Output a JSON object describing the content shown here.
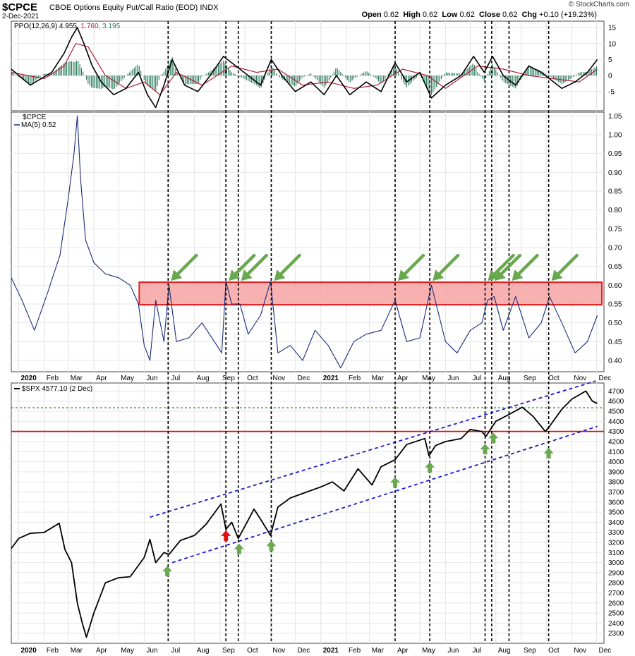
{
  "header": {
    "symbol": "$CPCE",
    "title": "CBOE Options Equity Put/Call Ratio (EOD)",
    "exchange": "INDX",
    "date": "2-Dec-2021",
    "open_label": "Open",
    "open": "0.62",
    "high_label": "High",
    "high": "0.62",
    "low_label": "Low",
    "low": "0.62",
    "close_label": "Close",
    "close": "0.62",
    "chg_label": "Chg",
    "chg": "+0.10 (+19.23%)",
    "brand": "© StockCharts.com"
  },
  "colors": {
    "ppo_line": "#000000",
    "signal_line": "#b0203a",
    "histogram": "#2e7d60",
    "cpce_line": "#1a2a7a",
    "zone_fill": "#f7a3a3",
    "zone_border": "#e02020",
    "arrow_green": "#6aa84f",
    "arrow_red": "#e01010",
    "channel": "#1a1ad0",
    "support_red": "#d01010",
    "level_green": "#3a9a3a"
  },
  "chart_data": [
    {
      "type": "line",
      "panel": "PPO",
      "legend": [
        {
          "name": "PPO(12,26,9)",
          "value": "4.955"
        },
        {
          "name": "",
          "value": "1.760"
        },
        {
          "name": "",
          "value": "3.195"
        }
      ],
      "y_ticks": [
        "15",
        "10",
        "5",
        "0",
        "-5"
      ],
      "ylim": [
        -11,
        17
      ],
      "series": [
        {
          "name": "PPO",
          "x": [
            "2019-12-23",
            "2020-01-15",
            "2020-02-10",
            "2020-02-25",
            "2020-03-05",
            "2020-03-12",
            "2020-03-20",
            "2020-03-30",
            "2020-04-10",
            "2020-04-25",
            "2020-05-10",
            "2020-05-25",
            "2020-06-05",
            "2020-06-15",
            "2020-06-25",
            "2020-07-05",
            "2020-07-20",
            "2020-08-05",
            "2020-08-20",
            "2020-09-05",
            "2020-09-15",
            "2020-09-25",
            "2020-10-05",
            "2020-10-20",
            "2020-11-02",
            "2020-11-15",
            "2020-12-01",
            "2020-12-20",
            "2021-01-05",
            "2021-01-20",
            "2021-02-05",
            "2021-02-25",
            "2021-03-15",
            "2021-04-01",
            "2021-04-15",
            "2021-05-01",
            "2021-05-15",
            "2021-06-01",
            "2021-06-20",
            "2021-07-05",
            "2021-07-18",
            "2021-07-28",
            "2021-08-10",
            "2021-08-25",
            "2021-09-10",
            "2021-09-25",
            "2021-10-05",
            "2021-10-20",
            "2021-11-05",
            "2021-11-20",
            "2021-12-02"
          ],
          "values": [
            2,
            -3,
            1,
            7,
            12,
            15,
            10,
            3,
            -2,
            -6,
            -4,
            1,
            -6,
            -10,
            -3,
            5,
            -3,
            -5,
            0,
            6,
            4,
            2,
            0,
            -3,
            5,
            0,
            -5,
            -2,
            -6,
            0,
            -6,
            -2,
            -5,
            4,
            -2,
            1,
            -7,
            -3,
            0,
            6,
            1,
            6,
            0,
            -3,
            3,
            1,
            -1,
            -4,
            -2,
            1,
            5
          ]
        },
        {
          "name": "Signal",
          "x": [
            "2019-12-23",
            "2020-02-01",
            "2020-02-25",
            "2020-03-10",
            "2020-03-25",
            "2020-04-15",
            "2020-05-10",
            "2020-06-01",
            "2020-06-20",
            "2020-07-10",
            "2020-08-10",
            "2020-09-15",
            "2020-10-15",
            "2020-11-10",
            "2020-12-10",
            "2021-01-10",
            "2021-02-10",
            "2021-03-10",
            "2021-04-10",
            "2021-05-10",
            "2021-06-01",
            "2021-07-10",
            "2021-08-10",
            "2021-09-10",
            "2021-10-10",
            "2021-11-10",
            "2021-12-02"
          ],
          "values": [
            1,
            -1,
            3,
            10,
            9,
            0,
            -4,
            -2,
            -6,
            1,
            -3,
            3,
            1,
            2,
            -3,
            -2,
            -4,
            -3,
            2,
            0,
            -4,
            3,
            2,
            0,
            -1,
            -2,
            2
          ]
        }
      ]
    },
    {
      "type": "line",
      "panel": "CPCE",
      "legend": [
        {
          "name": "$CPCE",
          "value": ""
        },
        {
          "name": "MA(5)",
          "value": "0.52"
        }
      ],
      "y_ticks": [
        "1.05",
        "1.00",
        "0.95",
        "0.90",
        "0.85",
        "0.80",
        "0.75",
        "0.70",
        "0.65",
        "0.60",
        "0.55",
        "0.50",
        "0.45",
        "0.40"
      ],
      "ylim": [
        0.37,
        1.06
      ],
      "x_ticks": [
        "2020",
        "Feb",
        "Mar",
        "Apr",
        "May",
        "Jun",
        "Jul",
        "Aug",
        "Sep",
        "Oct",
        "Nov",
        "Dec",
        "2021",
        "Feb",
        "Mar",
        "Apr",
        "May",
        "Jun",
        "Jul",
        "Aug",
        "Sep",
        "Oct",
        "Nov",
        "Dec"
      ],
      "resistance_zone": [
        0.548,
        0.608
      ],
      "series": [
        {
          "name": "MA(5)",
          "x": [
            "2019-12-23",
            "2020-01-05",
            "2020-01-20",
            "2020-02-05",
            "2020-02-20",
            "2020-03-01",
            "2020-03-08",
            "2020-03-12",
            "2020-03-16",
            "2020-03-22",
            "2020-04-01",
            "2020-04-15",
            "2020-05-01",
            "2020-05-15",
            "2020-05-25",
            "2020-06-01",
            "2020-06-08",
            "2020-06-15",
            "2020-06-25",
            "2020-07-01",
            "2020-07-10",
            "2020-07-25",
            "2020-08-10",
            "2020-08-25",
            "2020-09-03",
            "2020-09-08",
            "2020-09-15",
            "2020-09-25",
            "2020-10-05",
            "2020-10-20",
            "2020-11-01",
            "2020-11-10",
            "2020-11-25",
            "2020-12-10",
            "2020-12-25",
            "2021-01-10",
            "2021-01-25",
            "2021-02-10",
            "2021-02-25",
            "2021-03-15",
            "2021-04-01",
            "2021-04-15",
            "2021-05-01",
            "2021-05-15",
            "2021-06-01",
            "2021-06-15",
            "2021-07-01",
            "2021-07-15",
            "2021-07-22",
            "2021-07-30",
            "2021-08-10",
            "2021-08-25",
            "2021-09-10",
            "2021-09-25",
            "2021-10-05",
            "2021-10-20",
            "2021-11-05",
            "2021-11-20",
            "2021-12-02"
          ],
          "values": [
            0.62,
            0.56,
            0.48,
            0.58,
            0.68,
            0.83,
            0.95,
            1.05,
            0.88,
            0.72,
            0.66,
            0.63,
            0.62,
            0.6,
            0.55,
            0.44,
            0.4,
            0.56,
            0.45,
            0.6,
            0.45,
            0.46,
            0.5,
            0.45,
            0.42,
            0.61,
            0.55,
            0.55,
            0.47,
            0.52,
            0.61,
            0.42,
            0.44,
            0.4,
            0.48,
            0.44,
            0.38,
            0.45,
            0.47,
            0.48,
            0.56,
            0.45,
            0.46,
            0.6,
            0.45,
            0.42,
            0.48,
            0.5,
            0.56,
            0.57,
            0.48,
            0.57,
            0.46,
            0.5,
            0.57,
            0.5,
            0.42,
            0.45,
            0.52
          ]
        }
      ]
    },
    {
      "type": "line",
      "panel": "SPX",
      "legend": [
        {
          "name": "$SPX",
          "value": "4577.10 (2 Dec)"
        }
      ],
      "y_ticks": [
        "4700",
        "4600",
        "4500",
        "4400",
        "4300",
        "4200",
        "4100",
        "4000",
        "3900",
        "3800",
        "3700",
        "3600",
        "3500",
        "3400",
        "3300",
        "3200",
        "3100",
        "3000",
        "2900",
        "2800",
        "2700",
        "2600",
        "2500",
        "2400",
        "2300"
      ],
      "ylim": [
        2200,
        4780
      ],
      "x_ticks": [
        "2020",
        "Feb",
        "Mar",
        "Apr",
        "May",
        "Jun",
        "Jul",
        "Aug",
        "Sep",
        "Oct",
        "Nov",
        "Dec",
        "2021",
        "Feb",
        "Mar",
        "Apr",
        "May",
        "Jun",
        "Jul",
        "Aug",
        "Sep",
        "Oct",
        "Nov",
        "Dec"
      ],
      "horizontal_levels": [
        {
          "kind": "dashed-green",
          "value": 4535
        },
        {
          "kind": "solid-red",
          "value": 4300
        }
      ],
      "channel": {
        "upper": [
          {
            "x": "2020-06-08",
            "y": 3450
          },
          {
            "x": "2021-11-30",
            "y": 4800
          }
        ],
        "lower": [
          {
            "x": "2020-07-05",
            "y": 3000
          },
          {
            "x": "2021-12-02",
            "y": 4350
          }
        ]
      },
      "series": [
        {
          "name": "$SPX",
          "x": [
            "2019-12-23",
            "2020-01-01",
            "2020-01-15",
            "2020-02-01",
            "2020-02-19",
            "2020-02-26",
            "2020-03-05",
            "2020-03-12",
            "2020-03-18",
            "2020-03-23",
            "2020-04-01",
            "2020-04-15",
            "2020-05-01",
            "2020-05-15",
            "2020-06-01",
            "2020-06-08",
            "2020-06-15",
            "2020-06-25",
            "2020-07-01",
            "2020-07-15",
            "2020-08-01",
            "2020-08-15",
            "2020-09-02",
            "2020-09-08",
            "2020-09-15",
            "2020-09-23",
            "2020-10-01",
            "2020-10-12",
            "2020-10-20",
            "2020-11-01",
            "2020-11-10",
            "2020-11-25",
            "2020-12-15",
            "2021-01-01",
            "2021-01-15",
            "2021-01-29",
            "2021-02-15",
            "2021-03-04",
            "2021-03-15",
            "2021-04-01",
            "2021-04-15",
            "2021-05-07",
            "2021-05-12",
            "2021-05-20",
            "2021-06-01",
            "2021-06-20",
            "2021-07-01",
            "2021-07-15",
            "2021-07-20",
            "2021-08-01",
            "2021-08-15",
            "2021-09-02",
            "2021-09-15",
            "2021-09-30",
            "2021-10-05",
            "2021-10-20",
            "2021-11-01",
            "2021-11-18",
            "2021-11-26",
            "2021-12-02"
          ],
          "values": [
            3140,
            3240,
            3290,
            3300,
            3390,
            3130,
            3000,
            2600,
            2400,
            2260,
            2500,
            2800,
            2850,
            2860,
            3050,
            3230,
            3000,
            3100,
            3080,
            3220,
            3270,
            3380,
            3580,
            3330,
            3400,
            3240,
            3360,
            3530,
            3430,
            3270,
            3550,
            3640,
            3700,
            3750,
            3800,
            3710,
            3930,
            3770,
            3950,
            4020,
            4170,
            4230,
            4060,
            4160,
            4200,
            4230,
            4320,
            4300,
            4250,
            4400,
            4460,
            4540,
            4450,
            4300,
            4350,
            4520,
            4620,
            4700,
            4600,
            4577
          ]
        }
      ]
    }
  ],
  "annotations": {
    "vertical_lines": [
      "2020-06-30",
      "2020-09-08",
      "2020-09-23",
      "2020-11-02",
      "2021-04-01",
      "2021-05-13",
      "2021-07-19",
      "2021-07-27",
      "2021-08-17",
      "2021-10-04"
    ],
    "green_arrows_cpce": [
      "2020-06-30",
      "2020-09-08",
      "2020-09-23",
      "2020-11-02",
      "2021-04-01",
      "2021-05-13",
      "2021-07-19",
      "2021-07-27",
      "2021-08-17",
      "2021-10-04"
    ],
    "green_arrows_spx": [
      {
        "x": "2020-06-29",
        "y": 3010
      },
      {
        "x": "2020-09-24",
        "y": 3230
      },
      {
        "x": "2020-11-02",
        "y": 3260
      },
      {
        "x": "2021-04-01",
        "y": 3890
      },
      {
        "x": "2021-05-13",
        "y": 4040
      },
      {
        "x": "2021-07-19",
        "y": 4220
      },
      {
        "x": "2021-07-29",
        "y": 4330
      },
      {
        "x": "2021-10-04",
        "y": 4180
      }
    ],
    "red_arrows_spx": [
      {
        "x": "2020-09-08",
        "y": 3250
      }
    ]
  }
}
